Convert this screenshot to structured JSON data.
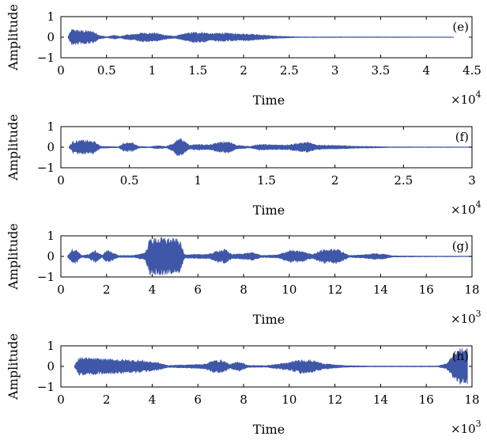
{
  "colors": {
    "signal": "#3f57a8",
    "axes": "#000000",
    "background": "#ffffff"
  },
  "chart_data": [
    {
      "type": "line",
      "panel_label": "(e)",
      "xlabel": "Time",
      "ylabel": "Amplitude",
      "xlim": [
        0,
        45000
      ],
      "ylim": [
        -1,
        1
      ],
      "x_multiplier": "×10",
      "x_multiplier_exp": "4",
      "x_ticks": [
        0,
        5000,
        10000,
        15000,
        20000,
        25000,
        30000,
        35000,
        40000,
        45000
      ],
      "x_tick_labels": [
        "0",
        "0.5",
        "1",
        "1.5",
        "2",
        "2.5",
        "3",
        "3.5",
        "4",
        "4.5"
      ],
      "y_ticks": [
        -1,
        0,
        1
      ],
      "y_tick_labels": [
        "−1",
        "0",
        "1"
      ],
      "signal_end": 43000,
      "series": [
        {
          "envelope": [
            [
              800,
              0.05
            ],
            [
              1200,
              0.4
            ],
            [
              2000,
              0.35
            ],
            [
              3500,
              0.3
            ],
            [
              4200,
              0.1
            ],
            [
              5000,
              0.02
            ],
            [
              5800,
              0.1
            ],
            [
              6500,
              0.04
            ],
            [
              7200,
              0.12
            ],
            [
              8000,
              0.15
            ],
            [
              8800,
              0.22
            ],
            [
              9500,
              0.22
            ],
            [
              10500,
              0.2
            ],
            [
              11500,
              0.1
            ],
            [
              12500,
              0.05
            ],
            [
              13500,
              0.18
            ],
            [
              14500,
              0.25
            ],
            [
              15500,
              0.25
            ],
            [
              16500,
              0.18
            ],
            [
              17500,
              0.22
            ],
            [
              18500,
              0.2
            ],
            [
              19500,
              0.16
            ],
            [
              20500,
              0.18
            ],
            [
              21500,
              0.14
            ],
            [
              22500,
              0.1
            ],
            [
              23500,
              0.06
            ],
            [
              24500,
              0.04
            ],
            [
              26000,
              0.015
            ],
            [
              43000,
              0.01
            ]
          ]
        }
      ]
    },
    {
      "type": "line",
      "panel_label": "(f)",
      "xlabel": "Time",
      "ylabel": "Amplitude",
      "xlim": [
        0,
        30000
      ],
      "ylim": [
        -1,
        1
      ],
      "x_multiplier": "×10",
      "x_multiplier_exp": "4",
      "x_ticks": [
        0,
        5000,
        10000,
        15000,
        20000,
        25000,
        30000
      ],
      "x_tick_labels": [
        "0",
        "0.5",
        "1",
        "1.5",
        "2",
        "2.5",
        "3"
      ],
      "y_ticks": [
        -1,
        0,
        1
      ],
      "y_tick_labels": [
        "−1",
        "0",
        "1"
      ],
      "signal_end": 30000,
      "series": [
        {
          "envelope": [
            [
              600,
              0.03
            ],
            [
              900,
              0.3
            ],
            [
              1600,
              0.35
            ],
            [
              2400,
              0.3
            ],
            [
              2900,
              0.05
            ],
            [
              4200,
              0.02
            ],
            [
              4600,
              0.22
            ],
            [
              5300,
              0.2
            ],
            [
              5700,
              0.04
            ],
            [
              6500,
              0.02
            ],
            [
              7000,
              0.08
            ],
            [
              7700,
              0.04
            ],
            [
              8200,
              0.2
            ],
            [
              8600,
              0.5
            ],
            [
              9000,
              0.3
            ],
            [
              9400,
              0.1
            ],
            [
              10000,
              0.15
            ],
            [
              10800,
              0.12
            ],
            [
              11600,
              0.25
            ],
            [
              12300,
              0.3
            ],
            [
              12800,
              0.1
            ],
            [
              13800,
              0.04
            ],
            [
              14500,
              0.15
            ],
            [
              15500,
              0.12
            ],
            [
              16500,
              0.12
            ],
            [
              17300,
              0.2
            ],
            [
              18000,
              0.25
            ],
            [
              18600,
              0.12
            ],
            [
              19500,
              0.1
            ],
            [
              20500,
              0.08
            ],
            [
              21500,
              0.05
            ],
            [
              22500,
              0.04
            ],
            [
              24000,
              0.015
            ],
            [
              30000,
              0.01
            ]
          ]
        }
      ]
    },
    {
      "type": "line",
      "panel_label": "(g)",
      "xlabel": "Time",
      "ylabel": "Amplitude",
      "xlim": [
        0,
        18000
      ],
      "ylim": [
        -1,
        1
      ],
      "x_multiplier": "×10",
      "x_multiplier_exp": "3",
      "x_ticks": [
        0,
        2000,
        4000,
        6000,
        8000,
        10000,
        12000,
        14000,
        16000,
        18000
      ],
      "x_tick_labels": [
        "0",
        "2",
        "4",
        "6",
        "8",
        "10",
        "12",
        "14",
        "16",
        "18"
      ],
      "y_ticks": [
        -1,
        0,
        1
      ],
      "y_tick_labels": [
        "−1",
        "0",
        "1"
      ],
      "signal_end": 18000,
      "series": [
        {
          "envelope": [
            [
              300,
              0.04
            ],
            [
              500,
              0.35
            ],
            [
              700,
              0.3
            ],
            [
              900,
              0.05
            ],
            [
              1200,
              0.1
            ],
            [
              1500,
              0.3
            ],
            [
              1800,
              0.05
            ],
            [
              2000,
              0.3
            ],
            [
              2200,
              0.25
            ],
            [
              2500,
              0.05
            ],
            [
              3200,
              0.05
            ],
            [
              3700,
              0.2
            ],
            [
              3900,
              0.9
            ],
            [
              4500,
              0.95
            ],
            [
              5200,
              0.85
            ],
            [
              5400,
              0.1
            ],
            [
              6000,
              0.1
            ],
            [
              6500,
              0.12
            ],
            [
              6900,
              0.3
            ],
            [
              7200,
              0.35
            ],
            [
              7500,
              0.1
            ],
            [
              8000,
              0.15
            ],
            [
              8400,
              0.2
            ],
            [
              8800,
              0.05
            ],
            [
              9500,
              0.08
            ],
            [
              10000,
              0.3
            ],
            [
              10600,
              0.25
            ],
            [
              11000,
              0.1
            ],
            [
              11500,
              0.35
            ],
            [
              12200,
              0.35
            ],
            [
              12600,
              0.05
            ],
            [
              13200,
              0.08
            ],
            [
              13700,
              0.15
            ],
            [
              14200,
              0.12
            ],
            [
              14500,
              0.03
            ],
            [
              15500,
              0.02
            ],
            [
              18000,
              0.01
            ]
          ]
        }
      ]
    },
    {
      "type": "line",
      "panel_label": "(h)",
      "xlabel": "Time",
      "ylabel": "Amplitude",
      "xlim": [
        0,
        18000
      ],
      "ylim": [
        -1,
        1
      ],
      "x_multiplier": "×10",
      "x_multiplier_exp": "3",
      "x_ticks": [
        0,
        2000,
        4000,
        6000,
        8000,
        10000,
        12000,
        14000,
        16000,
        18000
      ],
      "x_tick_labels": [
        "0",
        "2",
        "4",
        "6",
        "8",
        "10",
        "12",
        "14",
        "16",
        "18"
      ],
      "y_ticks": [
        -1,
        0,
        1
      ],
      "y_tick_labels": [
        "−1",
        "0",
        "1"
      ],
      "signal_end": 17800,
      "series": [
        {
          "envelope": [
            [
              600,
              0.05
            ],
            [
              800,
              0.45
            ],
            [
              1500,
              0.4
            ],
            [
              2500,
              0.35
            ],
            [
              3500,
              0.3
            ],
            [
              4200,
              0.2
            ],
            [
              4700,
              0.05
            ],
            [
              5500,
              0.08
            ],
            [
              5900,
              0.1
            ],
            [
              6300,
              0.12
            ],
            [
              6700,
              0.3
            ],
            [
              7100,
              0.3
            ],
            [
              7400,
              0.1
            ],
            [
              7800,
              0.25
            ],
            [
              8200,
              0.05
            ],
            [
              9000,
              0.04
            ],
            [
              10000,
              0.2
            ],
            [
              10500,
              0.35
            ],
            [
              11000,
              0.3
            ],
            [
              11500,
              0.15
            ],
            [
              12000,
              0.08
            ],
            [
              12500,
              0.04
            ],
            [
              13500,
              0.02
            ],
            [
              16500,
              0.02
            ],
            [
              16900,
              0.15
            ],
            [
              17200,
              0.6
            ],
            [
              17500,
              0.9
            ],
            [
              17800,
              0.9
            ]
          ]
        }
      ]
    }
  ]
}
